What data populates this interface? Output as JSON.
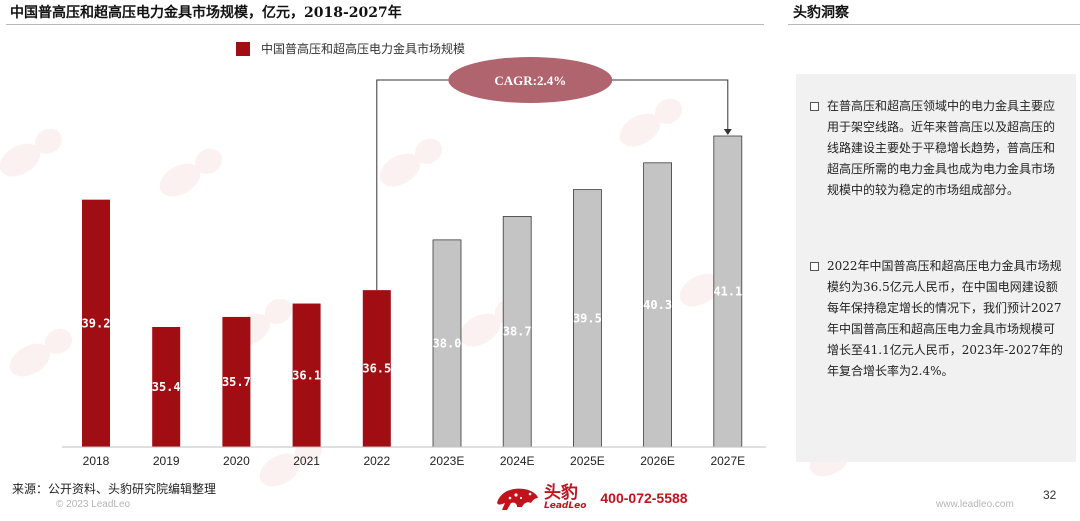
{
  "header": {
    "chart_title": "中国普高压和超高压电力金具市场规模，亿元，2018-2027年",
    "insight_title": "头豹洞察"
  },
  "chart_data": {
    "type": "bar",
    "categories": [
      "2018",
      "2019",
      "2020",
      "2021",
      "2022",
      "2023E",
      "2024E",
      "2025E",
      "2026E",
      "2027E"
    ],
    "values": [
      39.2,
      35.4,
      35.7,
      36.1,
      36.5,
      38.0,
      38.7,
      39.5,
      40.3,
      41.1
    ],
    "labels": [
      "39.2",
      "35.4",
      "35.7",
      "36.1",
      "36.5",
      "38.0",
      "38.7",
      "39.5",
      "40.3",
      "41.1"
    ],
    "legend": [
      "中国普高压和超高压电力金具市场规模"
    ],
    "legend_position": "top",
    "actual_color": "#a00d13",
    "forecast_color": "#c4c4c4",
    "forecast_start_index": 5,
    "annotation": {
      "label": "CAGR:2.4%",
      "from_index": 4,
      "to_index": 9,
      "ellipse_color": "#b0646d"
    },
    "grid": false
  },
  "insights": [
    "在普高压和超高压领域中的电力金具主要应用于架空线路。近年来普高压以及超高压的线路建设主要处于平稳增长趋势，普高压和超高压所需的电力金具也成为电力金具市场规模中的较为稳定的市场组成部分。",
    "2022年中国普高压和超高压电力金具市场规模约为36.5亿元人民币，在中国电网建设额每年保持稳定增长的情况下，我们预计2027年中国普高压和超高压电力金具市场规模可增长至41.1亿元人民币，2023年-2027年的年复合增长率为2.4%。"
  ],
  "footer": {
    "source": "来源：公开资料、头豹研究院编辑整理",
    "copyright": "© 2023 LeadLeo",
    "brand_name": "头豹",
    "brand_sub": "LeadLeo",
    "phone": "400-072-5588",
    "website": "www.leadleo.com",
    "page_number": "32"
  },
  "colors": {
    "brand_red": "#c0131b"
  }
}
